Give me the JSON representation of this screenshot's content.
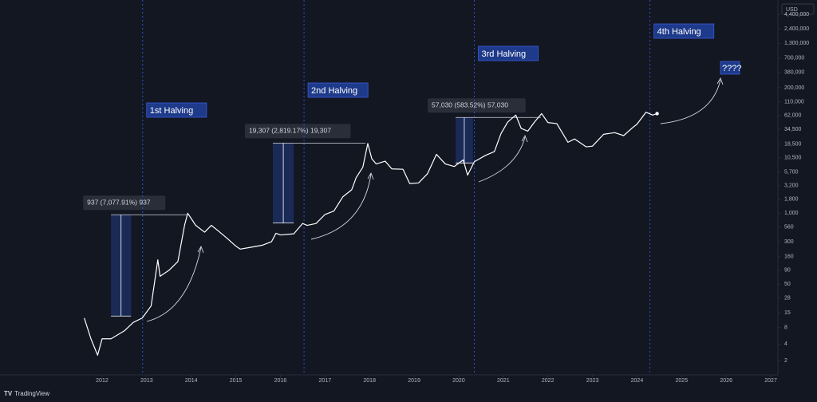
{
  "chart_data": {
    "type": "line",
    "log_scale": true,
    "currency": "USD",
    "watermark": "TradingView",
    "xlim": [
      2009.71,
      2027.16
    ],
    "xticks": [
      2012,
      2013,
      2014,
      2015,
      2016,
      2017,
      2018,
      2019,
      2020,
      2021,
      2022,
      2023,
      2024,
      2025,
      2026,
      2027
    ],
    "ylim": [
      1.29,
      8100000
    ],
    "yticks": [
      2,
      4,
      8,
      15,
      28,
      50,
      90,
      160,
      300,
      560,
      {
        "value": 1000,
        "label": "1,000"
      },
      {
        "value": 1800,
        "label": "1,800"
      },
      {
        "value": 3200,
        "label": "3,200"
      },
      {
        "value": 5700,
        "label": "5,700"
      },
      {
        "value": 10500,
        "label": "10,500"
      },
      {
        "value": 18500,
        "label": "18,500"
      },
      {
        "value": 34500,
        "label": "34,500"
      },
      {
        "value": 62000,
        "label": "62,000"
      },
      {
        "value": 110000,
        "label": "110,000"
      },
      {
        "value": 200000,
        "label": "200,000"
      },
      {
        "value": 380000,
        "label": "380,000"
      },
      {
        "value": 700000,
        "label": "700,000"
      },
      {
        "value": 1300000,
        "label": "1,300,000"
      },
      {
        "value": 2400000,
        "label": "2,400,000"
      },
      {
        "value": 4400000,
        "label": "4,400,000"
      }
    ],
    "series": [
      {
        "color": "#ffffff",
        "x": [
          2011.6,
          2011.75,
          2011.9,
          2012.0,
          2012.2,
          2012.5,
          2012.7,
          2012.9,
          2013.1,
          2013.25,
          2013.3,
          2013.5,
          2013.7,
          2013.85,
          2013.92,
          2014.0,
          2014.1,
          2014.3,
          2014.45,
          2014.6,
          2014.8,
          2015.0,
          2015.1,
          2015.3,
          2015.6,
          2015.8,
          2015.9,
          2016.0,
          2016.3,
          2016.5,
          2016.6,
          2016.8,
          2017.0,
          2017.2,
          2017.4,
          2017.6,
          2017.7,
          2017.85,
          2017.96,
          2018.05,
          2018.15,
          2018.35,
          2018.5,
          2018.75,
          2018.9,
          2019.1,
          2019.3,
          2019.5,
          2019.7,
          2019.9,
          2020.1,
          2020.2,
          2020.35,
          2020.6,
          2020.8,
          2020.95,
          2021.1,
          2021.28,
          2021.4,
          2021.55,
          2021.7,
          2021.86,
          2022.0,
          2022.2,
          2022.45,
          2022.6,
          2022.86,
          2023.0,
          2023.25,
          2023.5,
          2023.7,
          2023.9,
          2024.0,
          2024.2,
          2024.35,
          2024.45
        ],
        "values": [
          12,
          5,
          2.5,
          5,
          5,
          7,
          10,
          12,
          20,
          140,
          70,
          90,
          130,
          600,
          1000,
          800,
          600,
          450,
          600,
          480,
          350,
          250,
          220,
          235,
          260,
          300,
          430,
          400,
          420,
          650,
          600,
          650,
          950,
          1100,
          2000,
          2700,
          4500,
          7000,
          19000,
          10000,
          8000,
          9000,
          6500,
          6400,
          3500,
          3600,
          5300,
          12000,
          8000,
          7200,
          9500,
          5000,
          8800,
          11500,
          13500,
          29000,
          47000,
          63000,
          36000,
          32000,
          47000,
          67000,
          46000,
          44000,
          20000,
          23000,
          16500,
          17000,
          28000,
          30000,
          26500,
          37000,
          43000,
          71000,
          63000,
          67000
        ]
      }
    ],
    "halvings": [
      {
        "label": "1st Halving",
        "x": 2012.91
      },
      {
        "label": "2nd Halving",
        "x": 2016.53
      },
      {
        "label": "3rd Halving",
        "x": 2020.35
      },
      {
        "label": "4th Halving",
        "x": 2024.29
      }
    ],
    "measures": [
      {
        "label": "937 (7,077.91%) 937",
        "x": [
          2012.2,
          2012.65
        ],
        "y": [
          13.05,
          937
        ]
      },
      {
        "label": "19,307 (2,819.17%) 19,307",
        "x": [
          2015.83,
          2016.3
        ],
        "y": [
          661,
          19307
        ]
      },
      {
        "label": "57,030 (583.52%) 57,030",
        "x": [
          2019.93,
          2020.32
        ],
        "y": [
          8343,
          57030
        ]
      }
    ],
    "projection_label": "????"
  }
}
